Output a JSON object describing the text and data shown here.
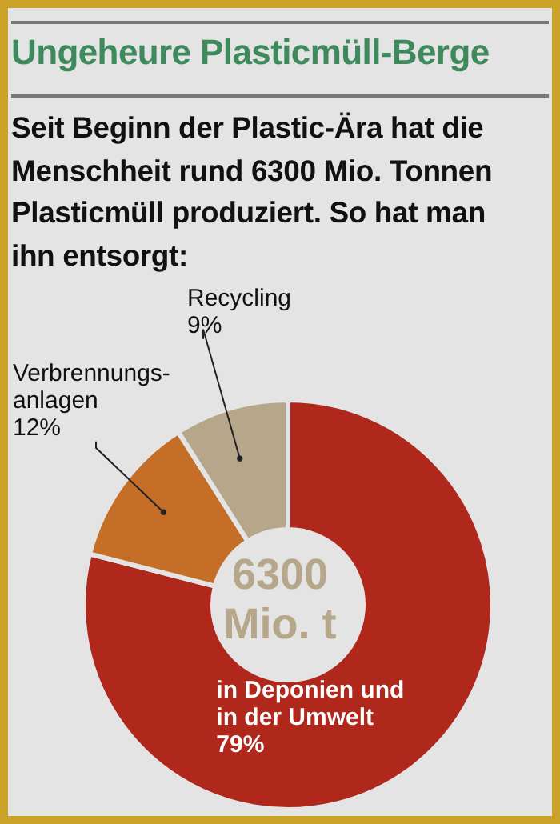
{
  "chart_data": {
    "type": "donut",
    "title": "Ungeheure Plasticmüll-Berge",
    "subtitle": "Seit Beginn der Plastic-Ära hat die Menschheit rund 6300 Mio. Tonnen Plasticmüll produziert. So hat man ihn entsorgt:",
    "categories": [
      "in Deponien und\nin der Umwelt",
      "Verbrennungs-\nanlagen",
      "Recycling"
    ],
    "values": [
      79,
      12,
      9
    ],
    "colors": [
      "#b0281c",
      "#c46e27",
      "#b6a78a"
    ],
    "value_labels": [
      "79%",
      "12%",
      "9%"
    ],
    "annotations": [
      "6300\nMio. t"
    ]
  }
}
